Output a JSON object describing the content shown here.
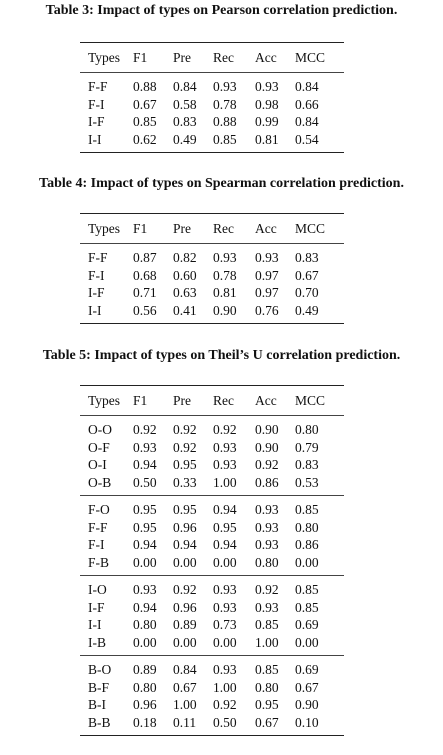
{
  "tables": [
    {
      "caption": "Table 3: Impact of types on Pearson correlation prediction.",
      "header": [
        "Types",
        "F1",
        "Pre",
        "Rec",
        "Acc",
        "MCC"
      ],
      "groups": [
        [
          [
            "F-F",
            "0.88",
            "0.84",
            "0.93",
            "0.93",
            "0.84"
          ],
          [
            "F-I",
            "0.67",
            "0.58",
            "0.78",
            "0.98",
            "0.66"
          ],
          [
            "I-F",
            "0.85",
            "0.83",
            "0.88",
            "0.99",
            "0.84"
          ],
          [
            "I-I",
            "0.62",
            "0.49",
            "0.85",
            "0.81",
            "0.54"
          ]
        ]
      ]
    },
    {
      "caption": "Table 4: Impact of types on Spearman correlation prediction.",
      "header": [
        "Types",
        "F1",
        "Pre",
        "Rec",
        "Acc",
        "MCC"
      ],
      "groups": [
        [
          [
            "F-F",
            "0.87",
            "0.82",
            "0.93",
            "0.93",
            "0.83"
          ],
          [
            "F-I",
            "0.68",
            "0.60",
            "0.78",
            "0.97",
            "0.67"
          ],
          [
            "I-F",
            "0.71",
            "0.63",
            "0.81",
            "0.97",
            "0.70"
          ],
          [
            "I-I",
            "0.56",
            "0.41",
            "0.90",
            "0.76",
            "0.49"
          ]
        ]
      ]
    },
    {
      "caption": "Table 5: Impact of types on Theil’s U correlation prediction.",
      "header": [
        "Types",
        "F1",
        "Pre",
        "Rec",
        "Acc",
        "MCC"
      ],
      "groups": [
        [
          [
            "O-O",
            "0.92",
            "0.92",
            "0.92",
            "0.90",
            "0.80"
          ],
          [
            "O-F",
            "0.93",
            "0.92",
            "0.93",
            "0.90",
            "0.79"
          ],
          [
            "O-I",
            "0.94",
            "0.95",
            "0.93",
            "0.92",
            "0.83"
          ],
          [
            "O-B",
            "0.50",
            "0.33",
            "1.00",
            "0.86",
            "0.53"
          ]
        ],
        [
          [
            "F-O",
            "0.95",
            "0.95",
            "0.94",
            "0.93",
            "0.85"
          ],
          [
            "F-F",
            "0.95",
            "0.96",
            "0.95",
            "0.93",
            "0.80"
          ],
          [
            "F-I",
            "0.94",
            "0.94",
            "0.94",
            "0.93",
            "0.86"
          ],
          [
            "F-B",
            "0.00",
            "0.00",
            "0.00",
            "0.80",
            "0.00"
          ]
        ],
        [
          [
            "I-O",
            "0.93",
            "0.92",
            "0.93",
            "0.92",
            "0.85"
          ],
          [
            "I-F",
            "0.94",
            "0.96",
            "0.93",
            "0.93",
            "0.85"
          ],
          [
            "I-I",
            "0.80",
            "0.89",
            "0.73",
            "0.85",
            "0.69"
          ],
          [
            "I-B",
            "0.00",
            "0.00",
            "0.00",
            "1.00",
            "0.00"
          ]
        ],
        [
          [
            "B-O",
            "0.89",
            "0.84",
            "0.93",
            "0.85",
            "0.69"
          ],
          [
            "B-F",
            "0.80",
            "0.67",
            "1.00",
            "0.80",
            "0.67"
          ],
          [
            "B-I",
            "0.96",
            "1.00",
            "0.92",
            "0.95",
            "0.90"
          ],
          [
            "B-B",
            "0.18",
            "0.11",
            "0.50",
            "0.67",
            "0.10"
          ]
        ]
      ]
    }
  ]
}
